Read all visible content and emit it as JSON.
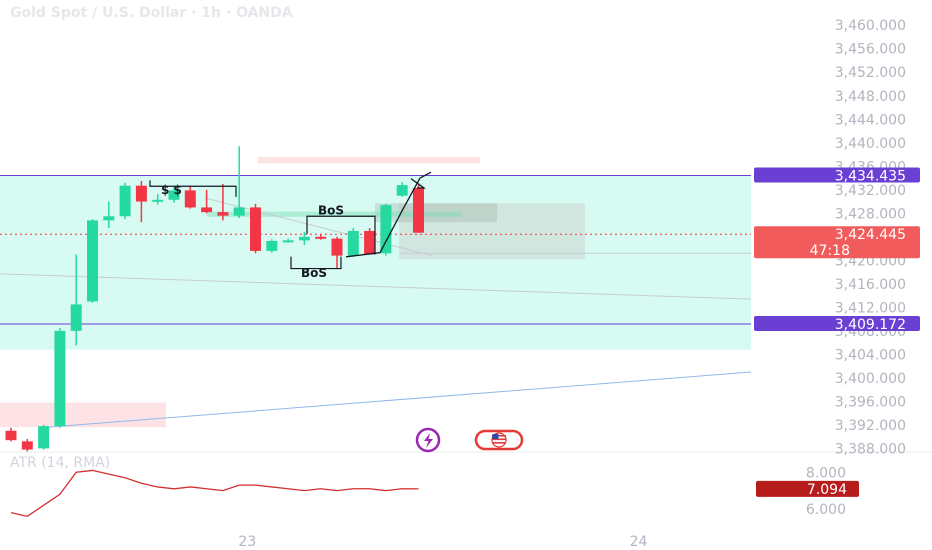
{
  "header": {
    "title": "Gold Spot / U.S. Dollar · 1h · OANDA"
  },
  "indicator": {
    "label": "ATR (14, RMA)",
    "value_tag": "7.094",
    "axis_labels": [
      "8.000",
      "6.000"
    ]
  },
  "price_tags": [
    {
      "label": "3,434.435",
      "color": "#6a3fd4"
    },
    {
      "label": "3,424.445",
      "sublabel": "47:18",
      "color": "#f15b5b"
    },
    {
      "label": "3,409.172",
      "color": "#6a3fd4"
    }
  ],
  "annotations": {
    "liquidity": "$ $",
    "bos_1": "BoS",
    "bos_2": "BoS"
  },
  "colors": {
    "up": "#26d9a0",
    "down": "#f23645",
    "zone": "#d7fbf3",
    "purple": "#6a3fd4",
    "atr_line": "#d32f2f"
  },
  "icons": [
    "flash-icon",
    "us-flag-icon"
  ],
  "chart_data": {
    "type": "candlestick",
    "title": "Gold Spot / U.S. Dollar · 1h · OANDA",
    "y_axis_ticks": [
      "3,460.000",
      "3,456.000",
      "3,452.000",
      "3,448.000",
      "3,444.000",
      "3,440.000",
      "3,436.000",
      "3,432.000",
      "3,428.000",
      "3,420.000",
      "3,416.000",
      "3,412.000",
      "3,408.000",
      "3,404.000",
      "3,400.000",
      "3,396.000",
      "3,392.000",
      "3,388.000"
    ],
    "y_tick_values": [
      3460,
      3456,
      3452,
      3448,
      3444,
      3440,
      3436,
      3432,
      3428,
      3420,
      3416,
      3412,
      3408,
      3404,
      3400,
      3396,
      3392,
      3388
    ],
    "ylim": [
      3387.9,
      3461.4
    ],
    "x_axis_ticks": [
      {
        "label": "23",
        "index": 14.5
      },
      {
        "label": "24",
        "index": 38.5
      }
    ],
    "candles": [
      {
        "o": 3391.0,
        "h": 3391.5,
        "l": 3389.2,
        "c": 3389.4
      },
      {
        "o": 3389.2,
        "h": 3389.6,
        "l": 3387.5,
        "c": 3387.8
      },
      {
        "o": 3388.0,
        "h": 3392.0,
        "l": 3387.8,
        "c": 3391.8
      },
      {
        "o": 3391.8,
        "h": 3408.5,
        "l": 3391.5,
        "c": 3408.0
      },
      {
        "o": 3408.0,
        "h": 3421.0,
        "l": 3405.5,
        "c": 3412.5
      },
      {
        "o": 3413.0,
        "h": 3427.0,
        "l": 3412.8,
        "c": 3426.8
      },
      {
        "o": 3426.8,
        "h": 3430.0,
        "l": 3425.5,
        "c": 3427.5
      },
      {
        "o": 3427.5,
        "h": 3433.2,
        "l": 3427.0,
        "c": 3432.7
      },
      {
        "o": 3432.7,
        "h": 3433.5,
        "l": 3426.5,
        "c": 3430.0
      },
      {
        "o": 3430.0,
        "h": 3431.3,
        "l": 3429.5,
        "c": 3430.3
      },
      {
        "o": 3430.3,
        "h": 3432.6,
        "l": 3429.8,
        "c": 3431.9
      },
      {
        "o": 3431.9,
        "h": 3432.6,
        "l": 3428.8,
        "c": 3429.0
      },
      {
        "o": 3429.0,
        "h": 3432.0,
        "l": 3428.0,
        "c": 3428.2
      },
      {
        "o": 3428.2,
        "h": 3433.0,
        "l": 3426.8,
        "c": 3427.6
      },
      {
        "o": 3427.6,
        "h": 3439.4,
        "l": 3427.2,
        "c": 3429.0
      },
      {
        "o": 3429.0,
        "h": 3429.6,
        "l": 3421.2,
        "c": 3421.6
      },
      {
        "o": 3421.6,
        "h": 3423.6,
        "l": 3421.3,
        "c": 3423.3
      },
      {
        "o": 3423.3,
        "h": 3423.7,
        "l": 3423.0,
        "c": 3423.4
      },
      {
        "o": 3423.4,
        "h": 3424.8,
        "l": 3422.6,
        "c": 3424.0
      },
      {
        "o": 3424.0,
        "h": 3424.4,
        "l": 3423.5,
        "c": 3423.7
      },
      {
        "o": 3423.7,
        "h": 3424.0,
        "l": 3418.6,
        "c": 3420.8
      },
      {
        "o": 3420.8,
        "h": 3425.5,
        "l": 3420.6,
        "c": 3425.0
      },
      {
        "o": 3425.0,
        "h": 3425.5,
        "l": 3421.0,
        "c": 3421.0
      },
      {
        "o": 3421.2,
        "h": 3429.6,
        "l": 3420.8,
        "c": 3429.4
      },
      {
        "o": 3431.0,
        "h": 3433.3,
        "l": 3430.8,
        "c": 3432.8
      },
      {
        "o": 3432.3,
        "h": 3432.8,
        "l": 3424.7,
        "c": 3424.7
      }
    ],
    "atr": [
      5.8,
      5.6,
      6.2,
      6.8,
      8.0,
      8.1,
      7.9,
      7.7,
      7.4,
      7.2,
      7.1,
      7.2,
      7.1,
      7.0,
      7.3,
      7.3,
      7.2,
      7.1,
      7.0,
      7.1,
      7.0,
      7.1,
      7.1,
      7.0,
      7.1,
      7.094
    ],
    "atr_ylim": [
      5.4,
      8.45
    ],
    "horizontal_levels": [
      3434.435,
      3409.172,
      3424.445
    ],
    "zones": [
      {
        "name": "demand-zone",
        "color": "#d7fbf3",
        "from": 3434.435,
        "to": 3404.8
      },
      {
        "name": "supply-zone-top",
        "color": "#fde3e6",
        "from": 3437.6,
        "to": 3436.5
      },
      {
        "name": "supply-zone-bottom",
        "color": "#fde3e6",
        "from": 3395.8,
        "to": 3391.6
      }
    ]
  }
}
